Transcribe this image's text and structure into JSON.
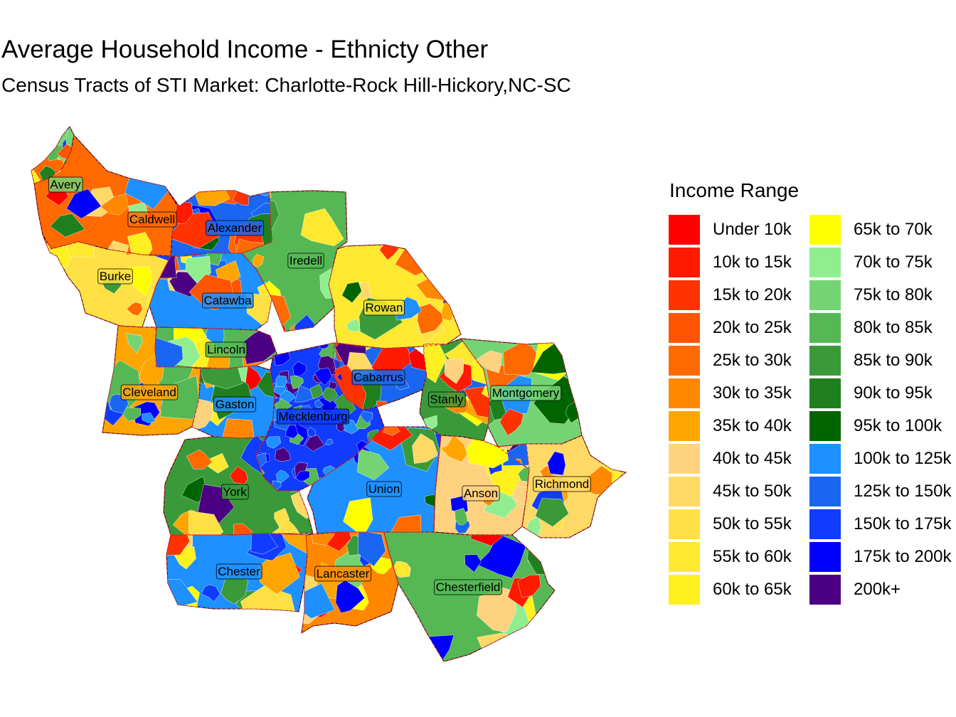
{
  "title": "Average Household Income - Ethnicty Other",
  "subtitle": "Census Tracts of STI Market: Charlotte-Rock Hill-Hickory,NC-SC",
  "legend": {
    "title": "Income Range",
    "items": [
      {
        "label": "Under 10k",
        "color": "#ff0000"
      },
      {
        "label": "10k to 15k",
        "color": "#ff1a00"
      },
      {
        "label": "15k to 20k",
        "color": "#ff3300"
      },
      {
        "label": "20k to 25k",
        "color": "#ff5500"
      },
      {
        "label": "25k to 30k",
        "color": "#ff6a00"
      },
      {
        "label": "30k to 35k",
        "color": "#ff8800"
      },
      {
        "label": "35k to 40k",
        "color": "#ffa500"
      },
      {
        "label": "40k to 45k",
        "color": "#ffd27f"
      },
      {
        "label": "45k to 50k",
        "color": "#ffd966"
      },
      {
        "label": "50k to 55k",
        "color": "#ffe045"
      },
      {
        "label": "55k to 60k",
        "color": "#ffe830"
      },
      {
        "label": "60k to 65k",
        "color": "#fff020"
      },
      {
        "label": "65k to 70k",
        "color": "#ffff00"
      },
      {
        "label": "70k to 75k",
        "color": "#90ee90"
      },
      {
        "label": "75k to 80k",
        "color": "#74d474"
      },
      {
        "label": "80k to 85k",
        "color": "#55b855"
      },
      {
        "label": "85k to 90k",
        "color": "#3a9a3a"
      },
      {
        "label": "90k to 95k",
        "color": "#1f7f1f"
      },
      {
        "label": "95k to 100k",
        "color": "#006400"
      },
      {
        "label": "100k to 125k",
        "color": "#1e90ff"
      },
      {
        "label": "125k to 150k",
        "color": "#1a66f0"
      },
      {
        "label": "150k to 175k",
        "color": "#0f3cff"
      },
      {
        "label": "175k to 200k",
        "color": "#0000ff"
      },
      {
        "label": "200k+",
        "color": "#4b0082"
      }
    ]
  },
  "counties": [
    {
      "name": "Avery",
      "color": "#74d474"
    },
    {
      "name": "Caldwell",
      "color": "#ff6a00"
    },
    {
      "name": "Alexander",
      "color": "#1a66f0"
    },
    {
      "name": "Iredell",
      "color": "#55b855"
    },
    {
      "name": "Burke",
      "color": "#ffe045"
    },
    {
      "name": "Catawba",
      "color": "#1e90ff"
    },
    {
      "name": "Rowan",
      "color": "#ffe830"
    },
    {
      "name": "Lincoln",
      "color": "#55b855"
    },
    {
      "name": "Cabarrus",
      "color": "#1a66f0"
    },
    {
      "name": "Cleveland",
      "color": "#ffa500"
    },
    {
      "name": "Gaston",
      "color": "#1e90ff"
    },
    {
      "name": "Stanly",
      "color": "#3a9a3a"
    },
    {
      "name": "Montgomery",
      "color": "#74d474"
    },
    {
      "name": "Mecklenburg",
      "color": "#0f3cff"
    },
    {
      "name": "York",
      "color": "#3a9a3a"
    },
    {
      "name": "Union",
      "color": "#1e90ff"
    },
    {
      "name": "Anson",
      "color": "#ffd27f"
    },
    {
      "name": "Richmond",
      "color": "#ffd966"
    },
    {
      "name": "Chester",
      "color": "#1e90ff"
    },
    {
      "name": "Lancaster",
      "color": "#ff8800"
    },
    {
      "name": "Chesterfield",
      "color": "#55b855"
    }
  ]
}
